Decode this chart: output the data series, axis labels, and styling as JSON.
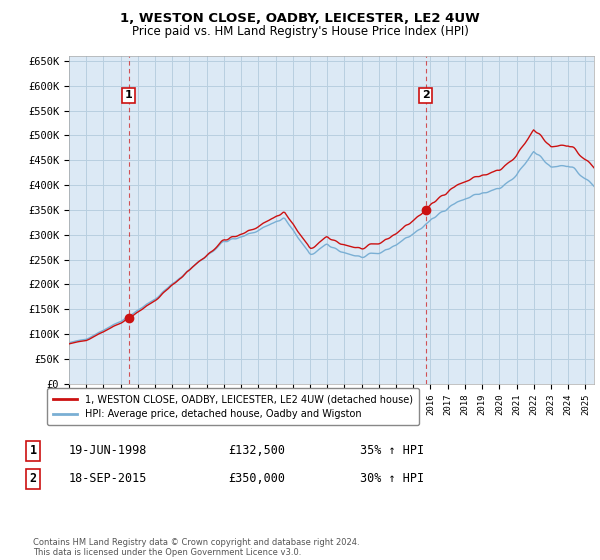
{
  "title": "1, WESTON CLOSE, OADBY, LEICESTER, LE2 4UW",
  "subtitle": "Price paid vs. HM Land Registry's House Price Index (HPI)",
  "title_fontsize": 9.5,
  "subtitle_fontsize": 8.5,
  "ylim": [
    0,
    660000
  ],
  "yticks": [
    0,
    50000,
    100000,
    150000,
    200000,
    250000,
    300000,
    350000,
    400000,
    450000,
    500000,
    550000,
    600000,
    650000
  ],
  "ytick_labels": [
    "£0",
    "£50K",
    "£100K",
    "£150K",
    "£200K",
    "£250K",
    "£300K",
    "£350K",
    "£400K",
    "£450K",
    "£500K",
    "£550K",
    "£600K",
    "£650K"
  ],
  "hpi_color": "#7aafd4",
  "price_color": "#cc1111",
  "sale1_date": 1998.47,
  "sale1_price": 132500,
  "sale1_label": "1",
  "sale2_date": 2015.72,
  "sale2_price": 350000,
  "sale2_label": "2",
  "legend_house_label": "1, WESTON CLOSE, OADBY, LEICESTER, LE2 4UW (detached house)",
  "legend_hpi_label": "HPI: Average price, detached house, Oadby and Wigston",
  "annotation1_date": "19-JUN-1998",
  "annotation1_price": "£132,500",
  "annotation1_hpi": "35% ↑ HPI",
  "annotation2_date": "18-SEP-2015",
  "annotation2_price": "£350,000",
  "annotation2_hpi": "30% ↑ HPI",
  "footer": "Contains HM Land Registry data © Crown copyright and database right 2024.\nThis data is licensed under the Open Government Licence v3.0.",
  "background_color": "#ffffff",
  "plot_bg_color": "#dce9f5",
  "grid_color": "#b8cfe0",
  "xmin": 1995.0,
  "xmax": 2025.5
}
